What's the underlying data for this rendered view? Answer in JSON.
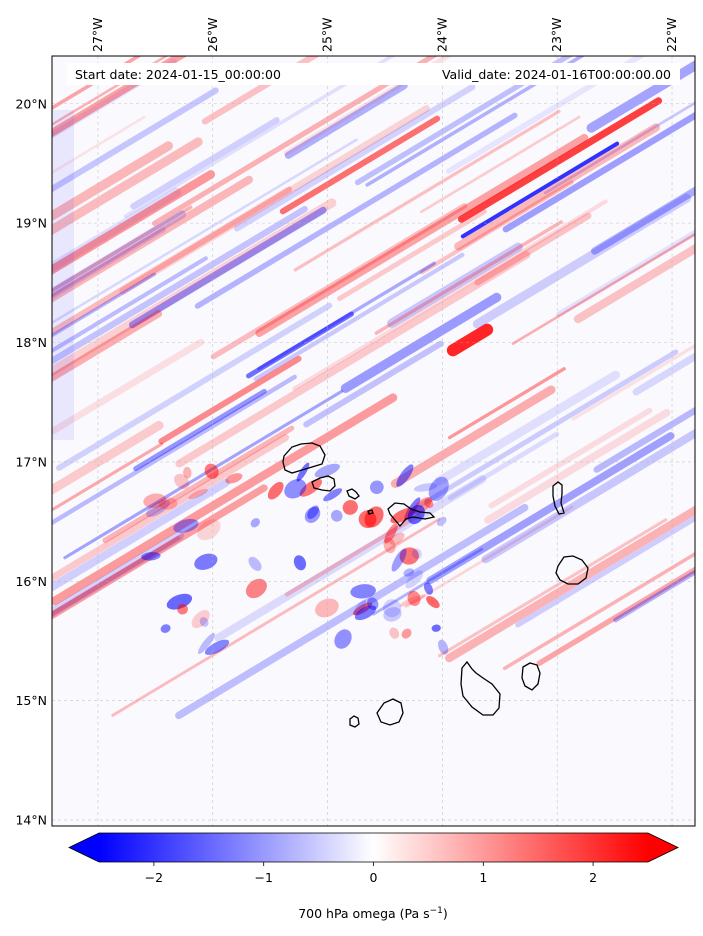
{
  "map": {
    "start_date": "Start date: 2024-01-15_00:00:00",
    "valid_date": "Valid_date: 2024-01-16T00:00:00.00",
    "lon_labels": [
      "27°W",
      "26°W",
      "25°W",
      "24°W",
      "23°W",
      "22°W"
    ],
    "lon_values": [
      -27,
      -26,
      -25,
      -24,
      -23,
      -22
    ],
    "lat_labels": [
      "20°N",
      "19°N",
      "18°N",
      "17°N",
      "16°N",
      "15°N",
      "14°N"
    ],
    "lat_values": [
      20,
      19,
      18,
      17,
      16,
      15,
      14
    ],
    "extent": {
      "lon_min": -27.4,
      "lon_max": -21.8,
      "lat_min": 13.95,
      "lat_max": 20.4
    },
    "field": "700 hPa omega",
    "colormap": "bwr",
    "vmin": -2.5,
    "vmax": 2.5,
    "colors": {
      "negative": "#0000ff",
      "zero": "#ffffff",
      "positive": "#ff0000",
      "coast": "#000000",
      "grid": "#b0b0b0"
    }
  },
  "colorbar": {
    "ticks": [
      "−2",
      "−1",
      "0",
      "1",
      "2"
    ],
    "tick_values": [
      -2,
      -1,
      0,
      1,
      2
    ],
    "label_main": "700 hPa omega (Pa s",
    "label_sup": "−1",
    "label_end": ")",
    "extend": "both"
  },
  "islands": [
    "Santo Antão",
    "São Vicente",
    "Santa Luzia",
    "São Nicolau",
    "Sal",
    "Boa Vista",
    "Maio",
    "Santiago",
    "Fogo",
    "Brava"
  ]
}
